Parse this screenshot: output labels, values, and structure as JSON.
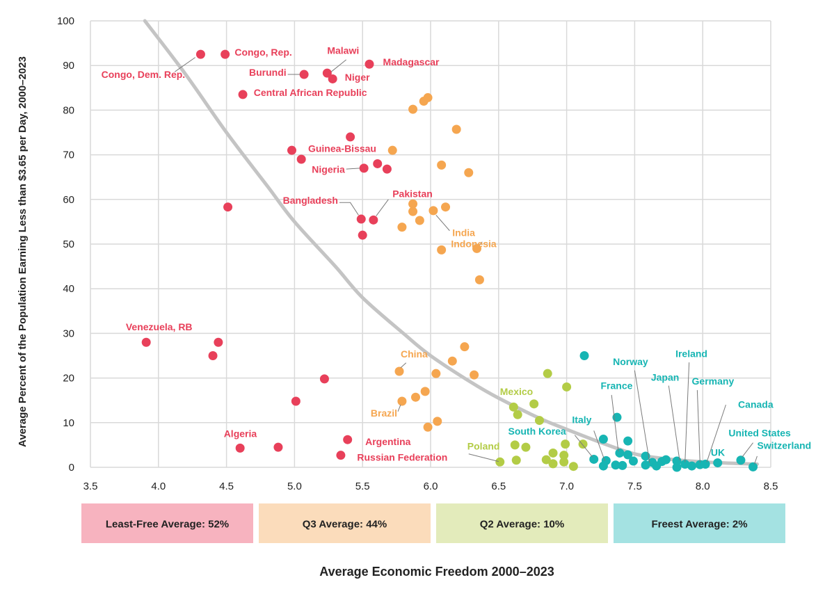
{
  "chart_data": {
    "type": "scatter",
    "xlabel": "Average Economic Freedom 2000–2023",
    "ylabel": "Average Percent of the Population Earning Less than $3.65 per Day,  2000–2023",
    "xlim": [
      3.5,
      8.5
    ],
    "ylim": [
      0,
      100
    ],
    "x_ticks": [
      "3.5",
      "4.0",
      "4.5",
      "5.0",
      "5.5",
      "6.0",
      "6.5",
      "7.0",
      "7.5",
      "8.0",
      "8.5"
    ],
    "y_ticks": [
      "0",
      "10",
      "20",
      "30",
      "40",
      "50",
      "60",
      "70",
      "80",
      "90",
      "100"
    ],
    "grid": true,
    "colors": {
      "least_free": "#e8405a",
      "q3": "#f5a650",
      "q2": "#b3cc46",
      "freest": "#17b5b3",
      "trend": "#c4c4c4",
      "grid": "#d9d9d9"
    },
    "quartile_bands": [
      {
        "label": "Least-Free Average: 52%",
        "color": "#f7b3bf"
      },
      {
        "label": "Q3 Average: 44%",
        "color": "#fbdcbb"
      },
      {
        "label": "Q2 Average: 10%",
        "color": "#e3ebbb"
      },
      {
        "label": "Freest Average: 2%",
        "color": "#a4e2e2"
      }
    ],
    "trend_line": [
      [
        3.9,
        100
      ],
      [
        4.2,
        88
      ],
      [
        4.5,
        75
      ],
      [
        4.8,
        63
      ],
      [
        5.0,
        55
      ],
      [
        5.3,
        45
      ],
      [
        5.5,
        38
      ],
      [
        5.8,
        30
      ],
      [
        6.0,
        25
      ],
      [
        6.3,
        19
      ],
      [
        6.5,
        15.5
      ],
      [
        6.8,
        11
      ],
      [
        7.0,
        8.5
      ],
      [
        7.3,
        5
      ],
      [
        7.5,
        3
      ],
      [
        7.7,
        2
      ],
      [
        8.0,
        1.2
      ],
      [
        8.4,
        0.7
      ]
    ],
    "series": [
      {
        "group": "least_free",
        "points": [
          [
            4.31,
            92.5
          ],
          [
            4.49,
            92.5
          ],
          [
            5.07,
            88
          ],
          [
            5.24,
            88.3
          ],
          [
            5.28,
            87
          ],
          [
            5.55,
            90.3
          ],
          [
            4.62,
            83.5
          ],
          [
            5.41,
            74
          ],
          [
            4.98,
            71
          ],
          [
            5.05,
            69
          ],
          [
            5.51,
            67
          ],
          [
            5.61,
            68
          ],
          [
            5.68,
            66.8
          ],
          [
            4.51,
            58.3
          ],
          [
            5.49,
            55.6
          ],
          [
            5.58,
            55.4
          ],
          [
            5.5,
            52
          ],
          [
            3.91,
            28
          ],
          [
            4.44,
            28
          ],
          [
            4.4,
            25
          ],
          [
            5.22,
            19.8
          ],
          [
            5.01,
            14.8
          ],
          [
            4.6,
            4.3
          ],
          [
            4.88,
            4.5
          ],
          [
            5.39,
            6.2
          ],
          [
            5.34,
            2.7
          ]
        ]
      },
      {
        "group": "q3",
        "points": [
          [
            5.87,
            80.2
          ],
          [
            5.95,
            82
          ],
          [
            5.98,
            82.8
          ],
          [
            6.19,
            75.7
          ],
          [
            5.72,
            71
          ],
          [
            6.08,
            67.7
          ],
          [
            6.28,
            66
          ],
          [
            5.87,
            59
          ],
          [
            5.87,
            57.3
          ],
          [
            6.02,
            57.5
          ],
          [
            6.11,
            58.3
          ],
          [
            5.92,
            55.3
          ],
          [
            5.79,
            53.8
          ],
          [
            6.08,
            48.7
          ],
          [
            6.34,
            49
          ],
          [
            6.36,
            42
          ],
          [
            5.77,
            21.5
          ],
          [
            6.25,
            27
          ],
          [
            6.16,
            23.8
          ],
          [
            6.04,
            21
          ],
          [
            6.32,
            20.7
          ],
          [
            5.96,
            17
          ],
          [
            5.89,
            15.7
          ],
          [
            5.79,
            14.8
          ],
          [
            6.05,
            10.3
          ],
          [
            5.98,
            9
          ]
        ]
      },
      {
        "group": "q2",
        "points": [
          [
            6.86,
            21
          ],
          [
            7.0,
            18
          ],
          [
            6.61,
            13.5
          ],
          [
            6.64,
            11.8
          ],
          [
            6.76,
            14.2
          ],
          [
            6.8,
            10.5
          ],
          [
            6.99,
            5.2
          ],
          [
            7.12,
            5.2
          ],
          [
            6.62,
            5
          ],
          [
            6.7,
            4.5
          ],
          [
            6.51,
            1.2
          ],
          [
            6.63,
            1.6
          ],
          [
            6.85,
            1.7
          ],
          [
            6.9,
            3.2
          ],
          [
            6.98,
            2.7
          ],
          [
            6.9,
            0.8
          ],
          [
            6.98,
            1.2
          ],
          [
            7.05,
            0.2
          ]
        ]
      },
      {
        "group": "freest",
        "points": [
          [
            7.13,
            25
          ],
          [
            7.37,
            11.2
          ],
          [
            7.27,
            6.3
          ],
          [
            7.45,
            5.9
          ],
          [
            7.2,
            1.8
          ],
          [
            7.29,
            1.5
          ],
          [
            7.27,
            0.3
          ],
          [
            7.39,
            3.2
          ],
          [
            7.45,
            2.8
          ],
          [
            7.49,
            1.4
          ],
          [
            7.36,
            0.5
          ],
          [
            7.41,
            0.4
          ],
          [
            7.58,
            2.5
          ],
          [
            7.58,
            0.5
          ],
          [
            7.63,
            1.1
          ],
          [
            7.66,
            0.3
          ],
          [
            7.7,
            1.3
          ],
          [
            7.73,
            1.7
          ],
          [
            7.81,
            1.4
          ],
          [
            7.81,
            0
          ],
          [
            7.87,
            0.7
          ],
          [
            7.92,
            0.3
          ],
          [
            7.98,
            0.6
          ],
          [
            8.02,
            0.7
          ],
          [
            8.11,
            1
          ],
          [
            8.28,
            1.6
          ],
          [
            8.37,
            0.1
          ]
        ]
      }
    ],
    "annotations": [
      {
        "text": "Congo, Dem. Rep.",
        "group": "least_free",
        "x": 3.58,
        "y": 87.2,
        "anchor": "start",
        "leader": [
          [
            4.12,
            88.6
          ],
          [
            4.27,
            91.8
          ]
        ]
      },
      {
        "text": "Congo, Rep.",
        "group": "least_free",
        "x": 4.56,
        "y": 92.2,
        "anchor": "start"
      },
      {
        "text": "Burundi",
        "group": "least_free",
        "x": 4.94,
        "y": 87.7,
        "anchor": "end",
        "leader": [
          [
            4.95,
            88
          ],
          [
            5.04,
            88
          ]
        ]
      },
      {
        "text": "Malawi",
        "group": "least_free",
        "x": 5.24,
        "y": 92.6,
        "anchor": "start",
        "leader": [
          [
            5.38,
            91.3
          ],
          [
            5.27,
            88.6
          ]
        ]
      },
      {
        "text": "Niger",
        "group": "least_free",
        "x": 5.37,
        "y": 86.6,
        "anchor": "start"
      },
      {
        "text": "Madagascar",
        "group": "least_free",
        "x": 5.65,
        "y": 90.0,
        "anchor": "start"
      },
      {
        "text": "Central African Republic",
        "group": "least_free",
        "x": 4.7,
        "y": 83.2,
        "anchor": "start"
      },
      {
        "text": "Guinea-Bissau",
        "group": "least_free",
        "x": 5.1,
        "y": 70.6,
        "anchor": "start"
      },
      {
        "text": "Nigeria",
        "group": "least_free",
        "x": 5.37,
        "y": 66.0,
        "anchor": "end",
        "leader": [
          [
            5.38,
            66.8
          ],
          [
            5.48,
            67
          ]
        ]
      },
      {
        "text": "Bangladesh",
        "group": "least_free",
        "x": 5.32,
        "y": 59.0,
        "anchor": "end",
        "leader": [
          [
            5.33,
            59.3
          ],
          [
            5.41,
            59.3
          ],
          [
            5.47,
            56.5
          ]
        ]
      },
      {
        "text": "Pakistan",
        "group": "least_free",
        "x": 5.72,
        "y": 60.5,
        "anchor": "start",
        "leader": [
          [
            5.69,
            60
          ],
          [
            5.6,
            56.3
          ]
        ]
      },
      {
        "text": "Venezuela, RB",
        "group": "least_free",
        "x": 3.76,
        "y": 30.7,
        "anchor": "start"
      },
      {
        "text": "Algeria",
        "group": "least_free",
        "x": 4.48,
        "y": 6.8,
        "anchor": "start"
      },
      {
        "text": "Argentina",
        "group": "least_free",
        "x": 5.52,
        "y": 5.0,
        "anchor": "start"
      },
      {
        "text": "Russian Federation",
        "group": "least_free",
        "x": 5.46,
        "y": 1.5,
        "anchor": "start"
      },
      {
        "text": "India",
        "group": "q3",
        "x": 6.16,
        "y": 51.8,
        "anchor": "start",
        "leader": [
          [
            6.14,
            53
          ],
          [
            6.04,
            56.5
          ]
        ]
      },
      {
        "text": "Indonesia",
        "group": "q3",
        "x": 6.15,
        "y": 49.3,
        "anchor": "start",
        "leader": [
          [
            6.38,
            50.5
          ],
          [
            6.36,
            49.8
          ]
        ]
      },
      {
        "text": "China",
        "group": "q3",
        "x": 5.78,
        "y": 24.6,
        "anchor": "start",
        "leader": [
          [
            5.82,
            23.4
          ],
          [
            5.78,
            22.3
          ]
        ]
      },
      {
        "text": "Brazil",
        "group": "q3",
        "x": 5.56,
        "y": 11.4,
        "anchor": "start",
        "leader": [
          [
            5.76,
            12.5
          ],
          [
            5.78,
            14
          ]
        ]
      },
      {
        "text": "Mexico",
        "group": "q2",
        "x": 6.51,
        "y": 16.2,
        "anchor": "start"
      },
      {
        "text": "Poland",
        "group": "q2",
        "x": 6.27,
        "y": 4.0,
        "anchor": "start",
        "leader": [
          [
            6.28,
            3
          ],
          [
            6.5,
            1.3
          ]
        ]
      },
      {
        "text": "South Korea",
        "group": "freest",
        "x": 6.57,
        "y": 7.3,
        "anchor": "start",
        "leader": [
          [
            7.06,
            7.2
          ],
          [
            7.19,
            2.3
          ]
        ]
      },
      {
        "text": "Italy",
        "group": "freest",
        "x": 7.04,
        "y": 9.9,
        "anchor": "start",
        "leader": [
          [
            7.2,
            8.2
          ],
          [
            7.28,
            1.5
          ]
        ]
      },
      {
        "text": "France",
        "group": "freest",
        "x": 7.25,
        "y": 17.5,
        "anchor": "start",
        "leader": [
          [
            7.33,
            16.2
          ],
          [
            7.38,
            3.6
          ]
        ]
      },
      {
        "text": "Norway",
        "group": "freest",
        "x": 7.34,
        "y": 22.9,
        "anchor": "start",
        "leader": [
          [
            7.5,
            21.7
          ],
          [
            7.61,
            1
          ]
        ]
      },
      {
        "text": "Ireland",
        "group": "freest",
        "x": 7.8,
        "y": 24.7,
        "anchor": "start",
        "leader": [
          [
            7.9,
            23.5
          ],
          [
            7.87,
            1.2
          ]
        ]
      },
      {
        "text": "Japan",
        "group": "freest",
        "x": 7.62,
        "y": 19.4,
        "anchor": "start",
        "leader": [
          [
            7.75,
            18.3
          ],
          [
            7.83,
            1.6
          ]
        ]
      },
      {
        "text": "Germany",
        "group": "freest",
        "x": 7.92,
        "y": 18.5,
        "anchor": "start",
        "leader": [
          [
            7.96,
            17.3
          ],
          [
            7.98,
            1.1
          ]
        ]
      },
      {
        "text": "Canada",
        "group": "freest",
        "x": 8.26,
        "y": 13.3,
        "anchor": "start",
        "leader": [
          [
            8.17,
            14
          ],
          [
            8.03,
            1.2
          ]
        ]
      },
      {
        "text": "United States",
        "group": "freest",
        "x": 8.19,
        "y": 6.9,
        "anchor": "start",
        "leader": [
          [
            8.37,
            5.5
          ],
          [
            8.29,
            2.3
          ]
        ]
      },
      {
        "text": "Switzerland",
        "group": "freest",
        "x": 8.4,
        "y": 4.1,
        "anchor": "start",
        "leader": [
          [
            8.4,
            2.5
          ],
          [
            8.38,
            0.7
          ]
        ]
      },
      {
        "text": "UK",
        "group": "freest",
        "x": 8.06,
        "y": 2.6,
        "anchor": "start"
      }
    ]
  }
}
